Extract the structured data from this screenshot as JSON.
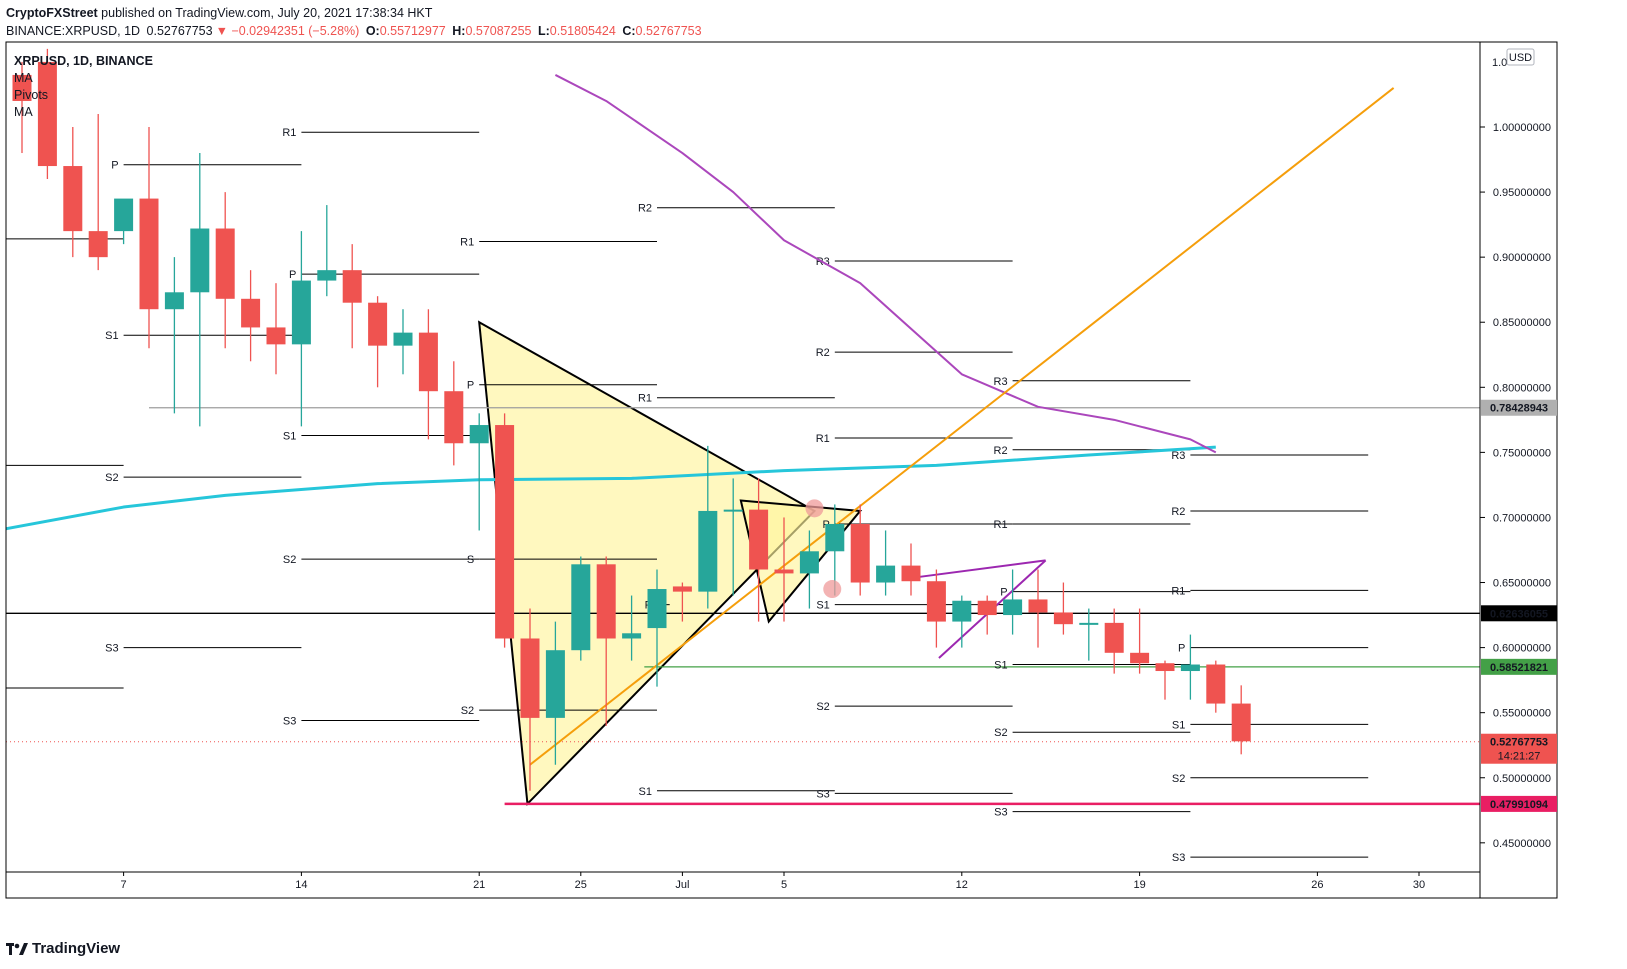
{
  "header": {
    "publisher": "CryptoFXStreet",
    "published_text": "published on TradingView.com, July 20, 2021 17:38:34 HKT",
    "symbol_line": "BINANCE:XRPUSD, 1D",
    "last": "0.52767753",
    "change": "▼ −0.02942351 (−5.28%)",
    "o_label": "O:",
    "o_value": "0.55712977",
    "h_label": "H:",
    "h_value": "0.57087255",
    "l_label": "L:",
    "l_value": "0.51805424",
    "c_label": "C:",
    "c_value": "0.52767753"
  },
  "legend": {
    "symbol": "XRPUSD, 1D, BINANCE",
    "indicators": [
      "MA",
      "Pivots",
      "MA"
    ]
  },
  "footer": {
    "brand": "TradingView"
  },
  "colors": {
    "up": "#26a69a",
    "down": "#ef5350",
    "ma_fast": "#26c6da",
    "ma_slow": "#ab47bc",
    "trendline": "#f59e0b",
    "triangle_fill": "#fff59d",
    "support_green": "#43a047",
    "support_pink": "#e91e63",
    "resistance_gray": "#9e9e9e"
  },
  "chart_data": {
    "type": "candlestick",
    "currency": "USD",
    "ylim": [
      0.4,
      1.02
    ],
    "y_ticks": [
      "1.00000000",
      "0.95000000",
      "0.90000000",
      "0.85000000",
      "0.80000000",
      "0.75000000",
      "0.70000000",
      "0.65000000",
      "0.60000000",
      "0.55000000",
      "0.50000000",
      "0.45000000"
    ],
    "y_top_label": "1.0",
    "x_ticks": [
      {
        "label": "7",
        "day": 4
      },
      {
        "label": "14",
        "day": 11
      },
      {
        "label": "21",
        "day": 18
      },
      {
        "label": "25",
        "day": 22
      },
      {
        "label": "Jul",
        "day": 26
      },
      {
        "label": "5",
        "day": 30
      },
      {
        "label": "12",
        "day": 37
      },
      {
        "label": "19",
        "day": 44
      },
      {
        "label": "26",
        "day": 51
      },
      {
        "label": "30",
        "day": 55
      }
    ],
    "candles": [
      {
        "o": 1.04,
        "h": 1.05,
        "l": 0.98,
        "c": 1.02
      },
      {
        "o": 1.05,
        "h": 1.06,
        "l": 0.96,
        "c": 0.97
      },
      {
        "o": 0.97,
        "h": 1.0,
        "l": 0.9,
        "c": 0.92
      },
      {
        "o": 0.92,
        "h": 1.01,
        "l": 0.89,
        "c": 0.9
      },
      {
        "o": 0.92,
        "h": 0.94,
        "l": 0.91,
        "c": 0.945
      },
      {
        "o": 0.945,
        "h": 1.0,
        "l": 0.83,
        "c": 0.86
      },
      {
        "o": 0.86,
        "h": 0.9,
        "l": 0.78,
        "c": 0.873
      },
      {
        "o": 0.873,
        "h": 0.98,
        "l": 0.77,
        "c": 0.922
      },
      {
        "o": 0.922,
        "h": 0.95,
        "l": 0.83,
        "c": 0.868
      },
      {
        "o": 0.868,
        "h": 0.89,
        "l": 0.82,
        "c": 0.846
      },
      {
        "o": 0.846,
        "h": 0.88,
        "l": 0.81,
        "c": 0.833
      },
      {
        "o": 0.833,
        "h": 0.92,
        "l": 0.77,
        "c": 0.882
      },
      {
        "o": 0.882,
        "h": 0.94,
        "l": 0.87,
        "c": 0.89
      },
      {
        "o": 0.89,
        "h": 0.91,
        "l": 0.83,
        "c": 0.865
      },
      {
        "o": 0.865,
        "h": 0.87,
        "l": 0.8,
        "c": 0.832
      },
      {
        "o": 0.832,
        "h": 0.86,
        "l": 0.81,
        "c": 0.842
      },
      {
        "o": 0.842,
        "h": 0.86,
        "l": 0.76,
        "c": 0.797
      },
      {
        "o": 0.797,
        "h": 0.82,
        "l": 0.74,
        "c": 0.757
      },
      {
        "o": 0.757,
        "h": 0.78,
        "l": 0.69,
        "c": 0.771
      },
      {
        "o": 0.771,
        "h": 0.78,
        "l": 0.6,
        "c": 0.607
      },
      {
        "o": 0.607,
        "h": 0.63,
        "l": 0.49,
        "c": 0.546
      },
      {
        "o": 0.546,
        "h": 0.62,
        "l": 0.51,
        "c": 0.598
      },
      {
        "o": 0.598,
        "h": 0.67,
        "l": 0.59,
        "c": 0.664
      },
      {
        "o": 0.664,
        "h": 0.67,
        "l": 0.54,
        "c": 0.607
      },
      {
        "o": 0.607,
        "h": 0.64,
        "l": 0.59,
        "c": 0.611
      },
      {
        "o": 0.615,
        "h": 0.66,
        "l": 0.57,
        "c": 0.645
      },
      {
        "o": 0.647,
        "h": 0.65,
        "l": 0.62,
        "c": 0.643
      },
      {
        "o": 0.643,
        "h": 0.755,
        "l": 0.63,
        "c": 0.705
      },
      {
        "o": 0.705,
        "h": 0.73,
        "l": 0.64,
        "c": 0.706
      },
      {
        "o": 0.706,
        "h": 0.73,
        "l": 0.62,
        "c": 0.66
      },
      {
        "o": 0.66,
        "h": 0.7,
        "l": 0.62,
        "c": 0.657
      },
      {
        "o": 0.657,
        "h": 0.69,
        "l": 0.63,
        "c": 0.674
      },
      {
        "o": 0.674,
        "h": 0.71,
        "l": 0.64,
        "c": 0.695
      },
      {
        "o": 0.695,
        "h": 0.71,
        "l": 0.64,
        "c": 0.65
      },
      {
        "o": 0.65,
        "h": 0.69,
        "l": 0.64,
        "c": 0.663
      },
      {
        "o": 0.663,
        "h": 0.68,
        "l": 0.64,
        "c": 0.651
      },
      {
        "o": 0.651,
        "h": 0.66,
        "l": 0.6,
        "c": 0.62
      },
      {
        "o": 0.62,
        "h": 0.64,
        "l": 0.6,
        "c": 0.636
      },
      {
        "o": 0.636,
        "h": 0.64,
        "l": 0.61,
        "c": 0.625
      },
      {
        "o": 0.625,
        "h": 0.66,
        "l": 0.61,
        "c": 0.637
      },
      {
        "o": 0.637,
        "h": 0.66,
        "l": 0.6,
        "c": 0.627
      },
      {
        "o": 0.627,
        "h": 0.65,
        "l": 0.61,
        "c": 0.618
      },
      {
        "o": 0.618,
        "h": 0.63,
        "l": 0.59,
        "c": 0.619
      },
      {
        "o": 0.619,
        "h": 0.63,
        "l": 0.58,
        "c": 0.596
      },
      {
        "o": 0.596,
        "h": 0.63,
        "l": 0.58,
        "c": 0.588
      },
      {
        "o": 0.588,
        "h": 0.59,
        "l": 0.56,
        "c": 0.582
      },
      {
        "o": 0.582,
        "h": 0.61,
        "l": 0.56,
        "c": 0.587
      },
      {
        "o": 0.587,
        "h": 0.59,
        "l": 0.55,
        "c": 0.557
      },
      {
        "o": 0.557,
        "h": 0.571,
        "l": 0.518,
        "c": 0.528
      }
    ],
    "ma_fast": [
      [
        -1,
        0.69
      ],
      [
        4,
        0.708
      ],
      [
        8,
        0.717
      ],
      [
        14,
        0.726
      ],
      [
        18,
        0.729
      ],
      [
        24,
        0.73
      ],
      [
        30,
        0.736
      ],
      [
        36,
        0.74
      ],
      [
        42,
        0.748
      ],
      [
        47,
        0.754
      ]
    ],
    "ma_slow": [
      [
        21,
        1.04
      ],
      [
        23,
        1.02
      ],
      [
        26,
        0.98
      ],
      [
        28,
        0.95
      ],
      [
        30,
        0.913
      ],
      [
        33,
        0.88
      ],
      [
        37,
        0.81
      ],
      [
        40,
        0.785
      ],
      [
        43,
        0.775
      ],
      [
        46,
        0.76
      ],
      [
        47,
        0.75
      ]
    ],
    "price_labels": [
      {
        "value": "0.78428943",
        "y": 0.78428943,
        "style": "gray"
      },
      {
        "value": "0.62636055",
        "y": 0.62636055,
        "style": "black"
      },
      {
        "value": "0.58521821",
        "y": 0.58521821,
        "style": "green"
      },
      {
        "value": "0.52767753",
        "y": 0.52767753,
        "style": "red",
        "countdown": "14:21:27"
      },
      {
        "value": "0.47991094",
        "y": 0.47991094,
        "style": "pink"
      }
    ],
    "horizontal_levels": [
      {
        "y": 0.78428943,
        "from": 5.0,
        "style": "gray"
      },
      {
        "y": 0.62636055,
        "from": -1,
        "style": "black"
      },
      {
        "y": 0.58521821,
        "from": 24.5,
        "style": "green"
      },
      {
        "y": 0.47991094,
        "from": 19.0,
        "style": "pink"
      }
    ],
    "pivots": [
      {
        "label": "P",
        "y": 0.971,
        "x0": 4,
        "x1": 11
      },
      {
        "label": "S1",
        "y": 0.84,
        "x0": 4,
        "x1": 11
      },
      {
        "label": "S2",
        "y": 0.731,
        "x0": 4,
        "x1": 11
      },
      {
        "label": "S3",
        "y": 0.6,
        "x0": 4,
        "x1": 11
      },
      {
        "label": "",
        "y": 0.914,
        "x0": -1,
        "x1": 4
      },
      {
        "label": "",
        "y": 0.74,
        "x0": -1,
        "x1": 4
      },
      {
        "label": "",
        "y": 0.569,
        "x0": -1,
        "x1": 4
      },
      {
        "label": "R1",
        "y": 0.996,
        "x0": 11,
        "x1": 18
      },
      {
        "label": "P",
        "y": 0.887,
        "x0": 11,
        "x1": 18
      },
      {
        "label": "S1",
        "y": 0.763,
        "x0": 11,
        "x1": 18
      },
      {
        "label": "S2",
        "y": 0.668,
        "x0": 11,
        "x1": 18
      },
      {
        "label": "S3",
        "y": 0.544,
        "x0": 11,
        "x1": 18
      },
      {
        "label": "R2",
        "y": 1.08,
        "x0": 18,
        "x1": 25
      },
      {
        "label": "R1",
        "y": 0.912,
        "x0": 18,
        "x1": 25
      },
      {
        "label": "P",
        "y": 0.802,
        "x0": 18,
        "x1": 25
      },
      {
        "label": "S",
        "y": 0.668,
        "x0": 18,
        "x1": 25
      },
      {
        "label": "P",
        "y": 0.633,
        "x0": 25,
        "x1": 25.5
      },
      {
        "label": "S2",
        "y": 0.552,
        "x0": 18,
        "x1": 25
      },
      {
        "label": "R2",
        "y": 0.938,
        "x0": 25,
        "x1": 32
      },
      {
        "label": "R1",
        "y": 0.792,
        "x0": 25,
        "x1": 32
      },
      {
        "label": "S1",
        "y": 0.49,
        "x0": 25,
        "x1": 32
      },
      {
        "label": "R3",
        "y": 0.897,
        "x0": 32,
        "x1": 39
      },
      {
        "label": "R2",
        "y": 0.827,
        "x0": 32,
        "x1": 39
      },
      {
        "label": "R1",
        "y": 0.761,
        "x0": 32,
        "x1": 39
      },
      {
        "label": "P",
        "y": 0.695,
        "x0": 32,
        "x1": 39
      },
      {
        "label": "S1",
        "y": 0.633,
        "x0": 32,
        "x1": 39
      },
      {
        "label": "S2",
        "y": 0.555,
        "x0": 32,
        "x1": 39
      },
      {
        "label": "S3",
        "y": 0.488,
        "x0": 32,
        "x1": 39
      },
      {
        "label": "R3",
        "y": 0.805,
        "x0": 39,
        "x1": 46
      },
      {
        "label": "R2",
        "y": 0.752,
        "x0": 39,
        "x1": 46
      },
      {
        "label": "R1",
        "y": 0.695,
        "x0": 39,
        "x1": 46
      },
      {
        "label": "P",
        "y": 0.643,
        "x0": 39,
        "x1": 46
      },
      {
        "label": "S1",
        "y": 0.587,
        "x0": 39,
        "x1": 46
      },
      {
        "label": "S2",
        "y": 0.535,
        "x0": 39,
        "x1": 46
      },
      {
        "label": "S3",
        "y": 0.474,
        "x0": 39,
        "x1": 46
      },
      {
        "label": "R3",
        "y": 0.748,
        "x0": 46,
        "x1": 53
      },
      {
        "label": "R2",
        "y": 0.705,
        "x0": 46,
        "x1": 53
      },
      {
        "label": "R1",
        "y": 0.644,
        "x0": 46,
        "x1": 53
      },
      {
        "label": "P",
        "y": 0.6,
        "x0": 46,
        "x1": 53
      },
      {
        "label": "S1",
        "y": 0.541,
        "x0": 46,
        "x1": 53
      },
      {
        "label": "S2",
        "y": 0.5,
        "x0": 46,
        "x1": 53
      },
      {
        "label": "S3",
        "y": 0.439,
        "x0": 46,
        "x1": 53
      }
    ],
    "triangle_large": [
      [
        18,
        0.85
      ],
      [
        31.2,
        0.705
      ],
      [
        19.9,
        0.48
      ]
    ],
    "triangle_small": [
      [
        28.3,
        0.713
      ],
      [
        33.0,
        0.705
      ],
      [
        29.4,
        0.62
      ]
    ],
    "trendline": [
      [
        20.0,
        0.51
      ],
      [
        54.0,
        1.03
      ]
    ],
    "wedge": [
      [
        35.2,
        0.654
      ],
      [
        38.8,
        0.662
      ],
      [
        40.3,
        0.667
      ],
      [
        36.1,
        0.592
      ]
    ],
    "circle_markers": [
      [
        31.2,
        0.707
      ],
      [
        31.9,
        0.645
      ]
    ]
  }
}
